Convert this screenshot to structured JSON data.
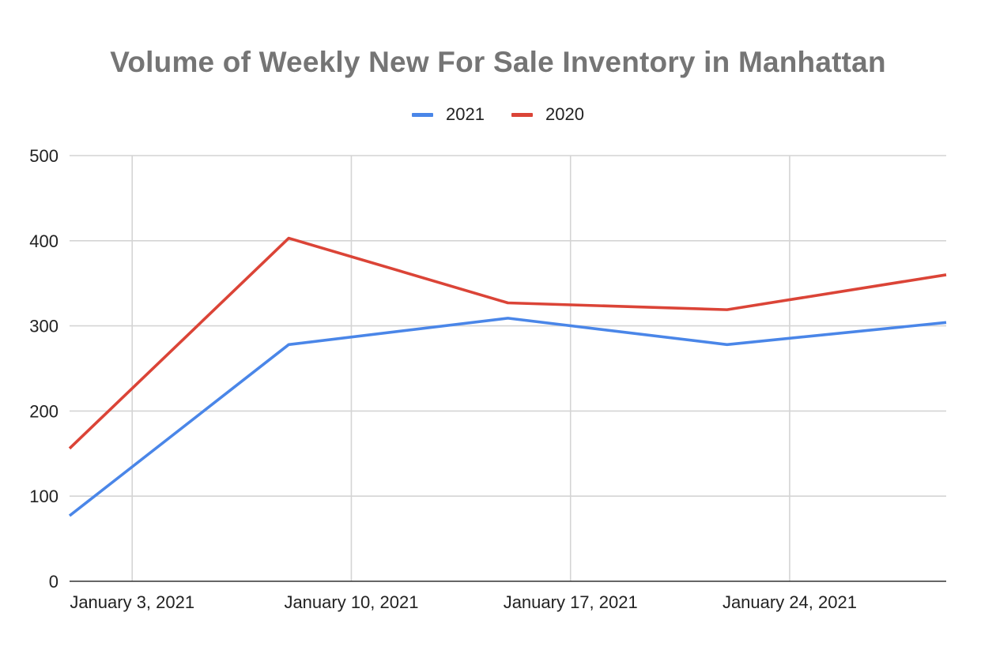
{
  "chart_data": {
    "type": "line",
    "title": "Volume of Weekly New For Sale Inventory in Manhattan",
    "x_tick_labels": [
      "January 3, 2021",
      "January 10, 2021",
      "January 17, 2021",
      "January 24, 2021"
    ],
    "x": [
      "2021-01-01",
      "2021-01-08",
      "2021-01-15",
      "2021-01-22",
      "2021-01-29"
    ],
    "xlim": [
      "2021-01-01",
      "2021-01-29"
    ],
    "x_ticks": [
      "2021-01-03",
      "2021-01-10",
      "2021-01-17",
      "2021-01-24"
    ],
    "y_ticks": [
      0,
      100,
      200,
      300,
      400,
      500
    ],
    "ylim": [
      0,
      500
    ],
    "grid": true,
    "legend_position": "top-center",
    "series": [
      {
        "name": "2021",
        "color": "#4a86e8",
        "values": [
          77,
          278,
          309,
          278,
          304
        ]
      },
      {
        "name": "2020",
        "color": "#db4437",
        "values": [
          156,
          403,
          327,
          319,
          360
        ]
      }
    ]
  }
}
